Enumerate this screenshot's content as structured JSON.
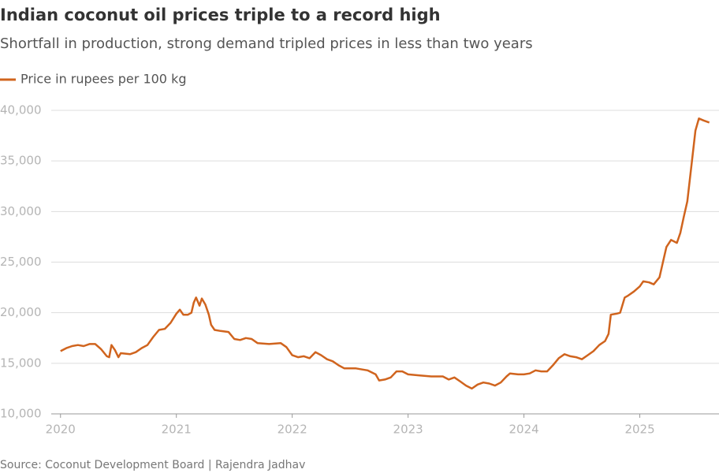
{
  "chart_data": {
    "type": "line",
    "title": "Indian coconut oil prices triple to a record high",
    "subtitle": "Shortfall in production, strong demand tripled prices in less than two years",
    "source": "Source: Coconut Development Board | Rajendra Jadhav",
    "x": [
      2020.0,
      2020.05,
      2020.1,
      2020.15,
      2020.2,
      2020.25,
      2020.3,
      2020.35,
      2020.4,
      2020.42,
      2020.44,
      2020.47,
      2020.5,
      2020.52,
      2020.6,
      2020.65,
      2020.7,
      2020.75,
      2020.8,
      2020.85,
      2020.9,
      2020.95,
      2021.0,
      2021.03,
      2021.06,
      2021.1,
      2021.13,
      2021.15,
      2021.17,
      2021.2,
      2021.22,
      2021.25,
      2021.28,
      2021.3,
      2021.33,
      2021.38,
      2021.45,
      2021.5,
      2021.55,
      2021.6,
      2021.65,
      2021.7,
      2021.8,
      2021.9,
      2021.95,
      2022.0,
      2022.05,
      2022.1,
      2022.15,
      2022.2,
      2022.25,
      2022.3,
      2022.35,
      2022.4,
      2022.45,
      2022.55,
      2022.65,
      2022.72,
      2022.75,
      2022.8,
      2022.85,
      2022.9,
      2022.95,
      2023.0,
      2023.1,
      2023.2,
      2023.3,
      2023.35,
      2023.4,
      2023.45,
      2023.5,
      2023.55,
      2023.6,
      2023.65,
      2023.7,
      2023.75,
      2023.8,
      2023.85,
      2023.88,
      2023.95,
      2024.0,
      2024.05,
      2024.1,
      2024.15,
      2024.2,
      2024.25,
      2024.3,
      2024.35,
      2024.4,
      2024.45,
      2024.5,
      2024.55,
      2024.6,
      2024.65,
      2024.7,
      2024.73,
      2024.75,
      2024.8,
      2024.83,
      2024.87,
      2024.9,
      2024.95,
      2025.0,
      2025.03,
      2025.08,
      2025.12,
      2025.17,
      2025.2,
      2025.23,
      2025.27,
      2025.32,
      2025.35,
      2025.38,
      2025.41,
      2025.45,
      2025.48,
      2025.51,
      2025.55,
      2025.6
    ],
    "series": [
      {
        "name": "Price in rupees per 100 kg",
        "color": "#d0641e",
        "values": [
          16200,
          16500,
          16700,
          16800,
          16700,
          16900,
          16900,
          16400,
          15700,
          15600,
          16800,
          16300,
          15600,
          16000,
          15900,
          16100,
          16500,
          16800,
          17600,
          18300,
          18400,
          19000,
          19900,
          20300,
          19800,
          19800,
          20000,
          21000,
          21500,
          20700,
          21400,
          20800,
          19800,
          18800,
          18300,
          18200,
          18100,
          17400,
          17300,
          17500,
          17400,
          17000,
          16900,
          17000,
          16600,
          15800,
          15600,
          15700,
          15500,
          16100,
          15800,
          15400,
          15200,
          14800,
          14500,
          14500,
          14300,
          13900,
          13300,
          13400,
          13600,
          14200,
          14200,
          13900,
          13800,
          13700,
          13700,
          13400,
          13600,
          13200,
          12800,
          12500,
          12900,
          13100,
          13000,
          12800,
          13100,
          13700,
          14000,
          13900,
          13900,
          14000,
          14300,
          14200,
          14200,
          14800,
          15500,
          15900,
          15700,
          15600,
          15400,
          15800,
          16200,
          16800,
          17200,
          17900,
          19800,
          19900,
          20000,
          21500,
          21700,
          22100,
          22600,
          23100,
          23000,
          22800,
          23500,
          25000,
          26500,
          27200,
          26900,
          27900,
          29500,
          31000,
          35000,
          38000,
          39200,
          39000,
          38800
        ]
      }
    ],
    "xlim": [
      2019.92,
      2025.67
    ],
    "xticks": [
      2020,
      2021,
      2022,
      2023,
      2024,
      2025
    ],
    "ylim": [
      10000,
      40000
    ],
    "yticks": [
      {
        "value": 10000,
        "label": "10,000"
      },
      {
        "value": 15000,
        "label": "15,000"
      },
      {
        "value": 20000,
        "label": "20,000"
      },
      {
        "value": 25000,
        "label": "25,000"
      },
      {
        "value": 30000,
        "label": "30,000"
      },
      {
        "value": 35000,
        "label": "35,000"
      },
      {
        "value": 40000,
        "label": "40,000"
      }
    ],
    "grid": true
  }
}
